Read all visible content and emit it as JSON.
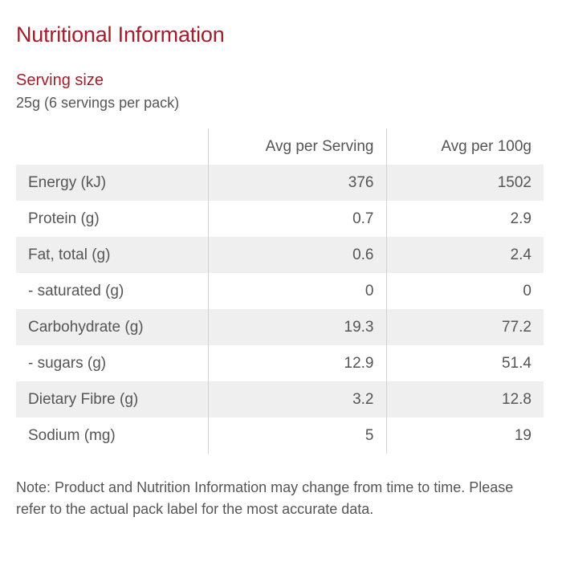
{
  "title": "Nutritional Information",
  "serving": {
    "heading": "Serving size",
    "value": "25g (6 servings per pack)"
  },
  "table": {
    "headers": [
      "",
      "Avg per Serving",
      "Avg per 100g"
    ],
    "rows": [
      {
        "label": "Energy (kJ)",
        "per_serving": "376",
        "per_100g": "1502"
      },
      {
        "label": "Protein (g)",
        "per_serving": "0.7",
        "per_100g": "2.9"
      },
      {
        "label": "Fat, total (g)",
        "per_serving": "0.6",
        "per_100g": "2.4"
      },
      {
        "label": "- saturated (g)",
        "per_serving": "0",
        "per_100g": "0"
      },
      {
        "label": "Carbohydrate (g)",
        "per_serving": "19.3",
        "per_100g": "77.2"
      },
      {
        "label": "- sugars (g)",
        "per_serving": "12.9",
        "per_100g": "51.4"
      },
      {
        "label": "Dietary Fibre (g)",
        "per_serving": "3.2",
        "per_100g": "12.8"
      },
      {
        "label": "Sodium (mg)",
        "per_serving": "5",
        "per_100g": "19"
      }
    ]
  },
  "note": "Note: Product and Nutrition Information may change from time to time. Please refer to the actual pack label for the most accurate data.",
  "colors": {
    "accent": "#a31d2b",
    "text": "#555555",
    "row_stripe": "#efefef",
    "divider": "#d2d2d2"
  }
}
